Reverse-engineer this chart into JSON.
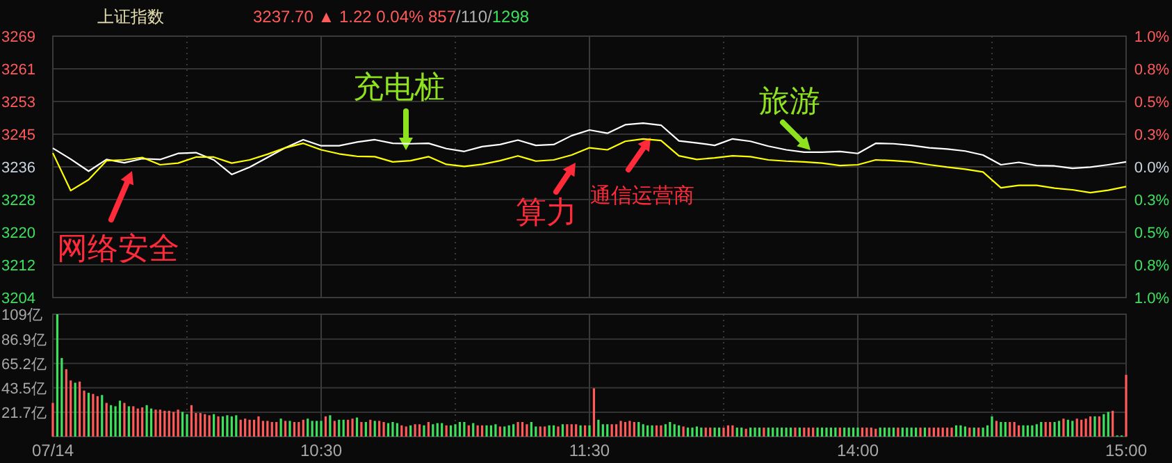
{
  "chart_data": [
    {
      "type": "line",
      "title": "上证指数",
      "subtitle": "3237.70 ▲ 1.22 0.04% 857/110/1298",
      "categories": [
        null,
        null,
        null,
        null,
        null,
        null,
        null,
        null,
        null,
        null,
        null,
        null,
        null,
        null,
        null,
        null,
        null,
        null,
        null,
        null,
        null,
        null,
        null,
        null,
        null,
        null,
        null,
        null,
        null,
        null,
        null,
        null,
        null,
        null,
        null,
        null,
        null,
        null,
        null,
        null,
        null,
        null,
        null,
        null,
        null,
        null,
        null,
        null,
        null,
        null,
        null,
        null,
        null,
        null,
        null,
        null,
        null,
        null,
        null,
        null,
        null
      ],
      "ylim": [
        3204.12,
        3268.84
      ],
      "yticks": [
        {
          "value": 3204.12,
          "label": "3204"
        },
        {
          "value": 3212.21,
          "label": "3212"
        },
        {
          "value": 3220.3,
          "label": "3220"
        },
        {
          "value": 3228.39,
          "label": "3228"
        },
        {
          "value": 3236.48,
          "label": "3236"
        },
        {
          "value": 3244.57,
          "label": "3245"
        },
        {
          "value": 3252.66,
          "label": "3253"
        },
        {
          "value": 3260.75,
          "label": "3261"
        },
        {
          "value": 3268.84,
          "label": "3269"
        }
      ],
      "y2lim": [
        -1,
        1
      ],
      "y2ticks": [
        {
          "value": -1,
          "label": "1.0%"
        },
        {
          "value": -0.75,
          "label": "0.8%"
        },
        {
          "value": -0.5,
          "label": "0.5%"
        },
        {
          "value": -0.25,
          "label": "0.3%"
        },
        {
          "value": 0,
          "label": "0.0%"
        },
        {
          "value": 0.25,
          "label": "0.3%"
        },
        {
          "value": 0.5,
          "label": "0.5%"
        },
        {
          "value": 0.75,
          "label": "0.8%"
        },
        {
          "value": 1,
          "label": "1.0%"
        }
      ],
      "grid": true,
      "series": [
        {
          "color": "#ffffff",
          "values": [
            3241.1,
            3238.4,
            3235.4,
            3238.3,
            3237.5,
            3238.5,
            3238.3,
            3239.8,
            3240.0,
            3238.2,
            3234.6,
            3236.4,
            3238.8,
            3241.2,
            3243.2,
            3241.7,
            3241.7,
            3242.6,
            3243.2,
            3242.3,
            3242.2,
            3242.3,
            3241.0,
            3240.3,
            3241.5,
            3242.0,
            3243.1,
            3241.8,
            3242.0,
            3244.2,
            3245.6,
            3244.8,
            3246.9,
            3247.3,
            3246.8,
            3242.9,
            3242.4,
            3241.8,
            3243.4,
            3242.8,
            3241.6,
            3240.7,
            3240.1,
            3240.1,
            3240.3,
            3239.8,
            3242.3,
            3242.2,
            3241.8,
            3241.2,
            3240.9,
            3240.4,
            3239.4,
            3237.0,
            3237.6,
            3236.8,
            3236.7,
            3236.1,
            3236.4,
            3237.0,
            3237.7
          ]
        },
        {
          "color": "#ffff00",
          "values": [
            3239.9,
            3230.6,
            3233.3,
            3238.0,
            3238.2,
            3238.8,
            3237.0,
            3237.4,
            3238.9,
            3238.9,
            3237.4,
            3238.2,
            3239.6,
            3241.2,
            3242.3,
            3240.7,
            3239.7,
            3239.1,
            3239.0,
            3237.7,
            3238.0,
            3239.0,
            3237.1,
            3236.6,
            3237.1,
            3238.0,
            3239.2,
            3237.9,
            3238.2,
            3239.4,
            3241.2,
            3240.7,
            3242.8,
            3243.4,
            3243.0,
            3239.2,
            3238.3,
            3238.7,
            3239.2,
            3239.0,
            3238.2,
            3237.9,
            3237.7,
            3237.4,
            3236.8,
            3237.0,
            3238.2,
            3238.0,
            3237.7,
            3237.0,
            3236.4,
            3235.9,
            3235.2,
            3231.3,
            3231.9,
            3231.9,
            3231.2,
            3230.8,
            3230.1,
            3230.7,
            3231.6
          ]
        }
      ],
      "annotations": [
        "网络安全",
        "充电桩",
        "算力",
        "通信运营商",
        "旅游"
      ]
    },
    {
      "type": "bar",
      "categories": [
        "07/14",
        null,
        null,
        null,
        null,
        null,
        null,
        null,
        null,
        null,
        null,
        null,
        null,
        null,
        null,
        null,
        null,
        null,
        null,
        null,
        null,
        null,
        null,
        null,
        null,
        null,
        null,
        null,
        null,
        null,
        null,
        null,
        null,
        null,
        null,
        null,
        null,
        null,
        null,
        null,
        null,
        null,
        null,
        null,
        null,
        null,
        null,
        null,
        null,
        null,
        null,
        null,
        null,
        null,
        null,
        null,
        null,
        null,
        null,
        null,
        "10:30",
        null,
        null,
        null,
        null,
        null,
        null,
        null,
        null,
        null,
        null,
        null,
        null,
        null,
        null,
        null,
        null,
        null,
        null,
        null,
        null,
        null,
        null,
        null,
        null,
        null,
        null,
        null,
        null,
        null,
        null,
        null,
        null,
        null,
        null,
        null,
        null,
        null,
        null,
        null,
        null,
        null,
        null,
        null,
        null,
        null,
        null,
        null,
        null,
        null,
        null,
        null,
        null,
        null,
        null,
        null,
        null,
        null,
        null,
        null,
        "11:30",
        null,
        null,
        null,
        null,
        null,
        null,
        null,
        null,
        null,
        null,
        null,
        null,
        null,
        null,
        null,
        null,
        null,
        null,
        null,
        null,
        null,
        null,
        null,
        null,
        null,
        null,
        null,
        null,
        null,
        null,
        null,
        null,
        null,
        null,
        null,
        null,
        null,
        null,
        null,
        null,
        null,
        null,
        null,
        null,
        null,
        null,
        null,
        null,
        null,
        null,
        null,
        null,
        null,
        null,
        null,
        null,
        null,
        null,
        null,
        "14:00",
        null,
        null,
        null,
        null,
        null,
        null,
        null,
        null,
        null,
        null,
        null,
        null,
        null,
        null,
        null,
        null,
        null,
        null,
        null,
        null,
        null,
        null,
        null,
        null,
        null,
        null,
        null,
        null,
        null,
        null,
        null,
        null,
        null,
        null,
        null,
        null,
        null,
        null,
        null,
        null,
        null,
        null,
        null,
        null,
        null,
        null,
        null,
        null,
        null,
        null,
        null,
        null,
        null,
        null,
        null,
        null,
        null,
        null,
        null,
        "15:00"
      ],
      "ylim": [
        0,
        109
      ],
      "yticks": [
        {
          "value": 21.7,
          "label": "21.7亿"
        },
        {
          "value": 43.5,
          "label": "43.5亿"
        },
        {
          "value": 65.2,
          "label": "65.2亿"
        },
        {
          "value": 86.9,
          "label": "86.9亿"
        },
        {
          "value": 109,
          "label": "109亿"
        }
      ],
      "grid": true,
      "values": [
        30,
        109,
        70,
        60,
        50,
        48,
        49,
        41,
        39,
        38,
        36,
        37,
        30,
        28,
        27,
        32,
        30,
        27,
        27,
        25,
        26,
        28,
        25,
        24,
        24,
        23,
        23,
        22,
        24,
        22,
        20,
        28,
        21,
        21,
        20,
        19,
        20,
        18,
        18,
        19,
        18,
        19,
        15,
        16,
        15,
        15,
        18,
        14,
        14,
        13,
        13,
        16,
        14,
        14,
        13,
        13,
        15,
        16,
        14,
        14,
        14,
        18,
        19,
        14,
        15,
        15,
        15,
        16,
        17,
        13,
        13,
        15,
        14,
        14,
        13,
        12,
        13,
        12,
        10,
        9,
        10,
        11,
        11,
        10,
        13,
        11,
        12,
        12,
        10,
        10,
        11,
        13,
        13,
        10,
        12,
        10,
        10,
        10,
        10,
        11,
        9,
        9,
        10,
        11,
        13,
        13,
        11,
        13,
        9,
        9,
        9,
        10,
        10,
        9,
        11,
        11,
        11,
        11,
        10,
        10,
        10,
        43,
        15,
        11,
        11,
        11,
        11,
        14,
        13,
        14,
        13,
        13,
        11,
        10,
        10,
        10,
        10,
        11,
        13,
        11,
        10,
        9,
        8,
        8,
        9,
        8,
        8,
        8,
        8,
        8,
        8,
        10,
        10,
        8,
        8,
        7,
        8,
        8,
        8,
        8,
        8,
        8,
        8,
        8,
        8,
        8,
        8,
        8,
        8,
        8,
        8,
        8,
        8,
        8,
        8,
        8,
        8,
        8,
        8,
        8,
        8,
        8,
        8,
        8,
        7,
        8,
        8,
        8,
        8,
        8,
        8,
        8,
        8,
        8,
        8,
        8,
        8,
        8,
        8,
        8,
        8,
        8,
        10,
        10,
        9,
        8,
        8,
        8,
        8,
        10,
        18,
        14,
        13,
        13,
        13,
        13,
        10,
        10,
        10,
        10,
        11,
        13,
        13,
        13,
        13,
        14,
        16,
        15,
        14,
        16,
        15,
        16,
        18,
        18,
        18,
        20,
        22,
        23,
        1,
        1,
        55
      ],
      "colors": [
        "#ff5b5b",
        "#3ee05e",
        "#3ee05e",
        "#ff5b5b",
        "#ff5b5b",
        "#3ee05e",
        "#ff5b5b",
        "#ff5b5b",
        "#3ee05e",
        "#ff5b5b",
        "#ff5b5b",
        "#3ee05e",
        "#ff5b5b",
        "#3ee05e",
        "#3ee05e",
        "#3ee05e",
        "#ff5b5b",
        "#3ee05e",
        "#ff5b5b",
        "#ff5b5b",
        "#ff5b5b",
        "#3ee05e",
        "#3ee05e",
        "#ff5b5b",
        "#ff5b5b",
        "#ff5b5b",
        "#ff5b5b",
        "#ff5b5b",
        "#ff5b5b",
        "#3ee05e",
        "#3ee05e",
        "#ff5b5b",
        "#ff5b5b",
        "#ff5b5b",
        "#ff5b5b",
        "#ff5b5b",
        "#3ee05e",
        "#ff5b5b",
        "#3ee05e",
        "#3ee05e",
        "#3ee05e",
        "#3ee05e",
        "#ff5b5b",
        "#ff5b5b",
        "#ff5b5b",
        "#ff5b5b",
        "#ff5b5b",
        "#ff5b5b",
        "#ff5b5b",
        "#ff5b5b",
        "#ff5b5b",
        "#3ee05e",
        "#ff5b5b",
        "#3ee05e",
        "#ff5b5b",
        "#ff5b5b",
        "#ff5b5b",
        "#3ee05e",
        "#3ee05e",
        "#3ee05e",
        "#3ee05e",
        "#ff5b5b",
        "#3ee05e",
        "#ff5b5b",
        "#3ee05e",
        "#3ee05e",
        "#ff5b5b",
        "#ff5b5b",
        "#3ee05e",
        "#ff5b5b",
        "#3ee05e",
        "#ff5b5b",
        "#3ee05e",
        "#ff5b5b",
        "#ff5b5b",
        "#3ee05e",
        "#3ee05e",
        "#3ee05e",
        "#ff5b5b",
        "#ff5b5b",
        "#3ee05e",
        "#ff5b5b",
        "#ff5b5b",
        "#3ee05e",
        "#ff5b5b",
        "#3ee05e",
        "#3ee05e",
        "#3ee05e",
        "#ff5b5b",
        "#3ee05e",
        "#3ee05e",
        "#3ee05e",
        "#3ee05e",
        "#ff5b5b",
        "#3ee05e",
        "#ff5b5b",
        "#ff5b5b",
        "#3ee05e",
        "#3ee05e",
        "#3ee05e",
        "#ff5b5b",
        "#3ee05e",
        "#3ee05e",
        "#3ee05e",
        "#ff5b5b",
        "#ff5b5b",
        "#ff5b5b",
        "#3ee05e",
        "#3ee05e",
        "#ff5b5b",
        "#ff5b5b",
        "#3ee05e",
        "#3ee05e",
        "#ff5b5b",
        "#3ee05e",
        "#ff5b5b",
        "#ff5b5b",
        "#ff5b5b",
        "#3ee05e",
        "#ff5b5b",
        "#3ee05e",
        "#ff5b5b",
        "#3ee05e",
        "#3ee05e",
        "#3ee05e",
        "#ff5b5b",
        "#ff5b5b",
        "#ff5b5b",
        "#ff5b5b",
        "#ff5b5b",
        "#ff5b5b",
        "#3ee05e",
        "#3ee05e",
        "#3ee05e",
        "#3ee05e",
        "#ff5b5b",
        "#ff5b5b",
        "#3ee05e",
        "#3ee05e",
        "#3ee05e",
        "#3ee05e",
        "#ff5b5b",
        "#3ee05e",
        "#3ee05e",
        "#3ee05e",
        "#3ee05e",
        "#ff5b5b",
        "#ff5b5b",
        "#3ee05e",
        "#3ee05e",
        "#ff5b5b",
        "#ff5b5b",
        "#ff5b5b",
        "#3ee05e",
        "#3ee05e",
        "#ff5b5b",
        "#3ee05e",
        "#3ee05e",
        "#3ee05e",
        "#ff5b5b",
        "#3ee05e",
        "#3ee05e",
        "#3ee05e",
        "#3ee05e",
        "#3ee05e",
        "#3ee05e",
        "#ff5b5b",
        "#3ee05e",
        "#ff5b5b",
        "#ff5b5b",
        "#ff5b5b",
        "#3ee05e",
        "#3ee05e",
        "#3ee05e",
        "#3ee05e",
        "#3ee05e",
        "#ff5b5b",
        "#3ee05e",
        "#3ee05e",
        "#3ee05e",
        "#3ee05e",
        "#ff5b5b",
        "#ff5b5b",
        "#ff5b5b",
        "#ff5b5b",
        "#3ee05e",
        "#3ee05e",
        "#3ee05e",
        "#3ee05e",
        "#ff5b5b",
        "#3ee05e",
        "#3ee05e",
        "#3ee05e",
        "#3ee05e",
        "#ff5b5b",
        "#3ee05e",
        "#ff5b5b",
        "#ff5b5b",
        "#ff5b5b",
        "#ff5b5b",
        "#ff5b5b",
        "#ff5b5b",
        "#3ee05e",
        "#3ee05e",
        "#3ee05e",
        "#ff5b5b",
        "#3ee05e",
        "#ff5b5b",
        "#3ee05e",
        "#3ee05e",
        "#3ee05e",
        "#ff5b5b",
        "#3ee05e",
        "#3ee05e",
        "#ff5b5b",
        "#ff5b5b",
        "#ff5b5b",
        "#3ee05e",
        "#3ee05e",
        "#3ee05e",
        "#3ee05e",
        "#3ee05e",
        "#ff5b5b",
        "#ff5b5b",
        "#3ee05e",
        "#3ee05e",
        "#ff5b5b",
        "#3ee05e",
        "#3ee05e",
        "#ff5b5b",
        "#ff5b5b",
        "#ff5b5b",
        "#ff5b5b",
        "#3ee05e",
        "#ff5b5b",
        "#3ee05e",
        "#3ee05e",
        "#ff5b5b",
        "#3ee05e",
        "#3ee05e",
        "#ff5b5b"
      ]
    }
  ]
}
